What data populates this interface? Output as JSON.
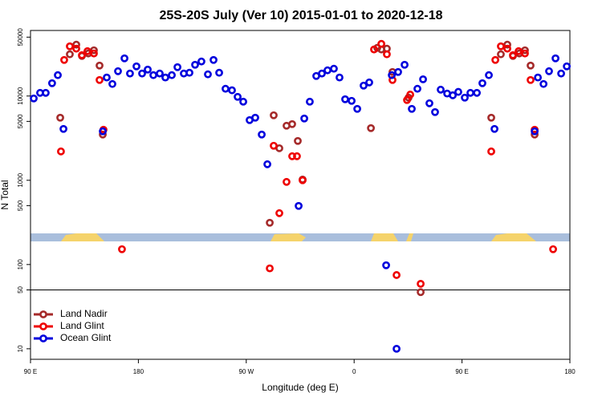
{
  "chart_data": {
    "type": "scatter",
    "title": "25S-20S July (Ver 10)   2015-01-01 to 2020-12-18",
    "xlabel": "Longitude (deg E)",
    "ylabel": "N Total",
    "xlim": [
      90,
      540
    ],
    "ylim": [
      7.5,
      60000
    ],
    "log_y": true,
    "legend": "lower left",
    "hline": 50,
    "xticks": [
      {
        "value": 90,
        "label": "90 E"
      },
      180,
      {
        "value": 270,
        "label": "90 W"
      },
      {
        "value": 360,
        "label": "0"
      },
      {
        "value": 450,
        "label": "90 E"
      },
      {
        "value": 540,
        "label": "180"
      }
    ],
    "yticks": [
      10,
      50,
      100,
      500,
      1000,
      5000,
      10000,
      50000
    ],
    "series": [
      {
        "name": "Land Nadir",
        "color": "#a52a2a",
        "x": [
          114.8,
          122.8,
          128.2,
          132.9,
          138.2,
          142.9,
          147.6,
          150.3,
          289.6,
          292.9,
          297.6,
          303.6,
          308.3,
          313,
          317,
          374,
          379.3,
          382.7,
          387.3,
          392,
          405.4,
          415.5,
          474.4,
          482.4,
          487.8,
          492.5,
          497.8,
          502.5,
          507.2,
          510.6
        ],
        "values": [
          5530,
          31300,
          40700,
          29900,
          32000,
          34900,
          23000,
          3490,
          313,
          5910,
          2400,
          4440,
          4640,
          2930,
          1020,
          4160,
          37300,
          35700,
          36500,
          19300,
          9570,
          47,
          5530,
          31300,
          40700,
          29900,
          32000,
          34900,
          23000,
          3490
        ]
      },
      {
        "name": "Land Glint",
        "color": "#ee0000",
        "x": [
          115.4,
          118.1,
          122.8,
          128.2,
          132.9,
          137.5,
          142.9,
          147.6,
          150.9,
          166.3,
          289.6,
          292.9,
          297.6,
          303.6,
          308.3,
          312.3,
          317,
          376.6,
          382.7,
          387.3,
          392,
          395.4,
          404.1,
          406.8,
          415.5,
          474.4,
          477.8,
          482.4,
          487.8,
          492.5,
          497.2,
          502.5,
          507.2,
          510.6,
          526
        ],
        "values": [
          2200,
          26800,
          38900,
          36500,
          30600,
          34100,
          32000,
          15500,
          3980,
          152,
          90,
          2570,
          407,
          957,
          1930,
          1930,
          1000,
          35700,
          41600,
          31300,
          15500,
          75,
          8960,
          10400,
          59,
          2200,
          26800,
          38900,
          36500,
          30600,
          34100,
          32000,
          15500,
          3980,
          152
        ]
      },
      {
        "name": "Ocean Glint",
        "color": "#0000dd",
        "x": [
          92.7,
          98,
          102.7,
          108,
          112.8,
          117.5,
          150.3,
          153.6,
          158.3,
          163,
          168.4,
          173,
          178.4,
          183.1,
          187.8,
          192.5,
          197.8,
          202.5,
          207.9,
          212.6,
          217.9,
          222.6,
          227.3,
          232.6,
          238,
          242.7,
          247.4,
          252.7,
          258.1,
          262.8,
          267.5,
          272.8,
          277.5,
          282.9,
          287.6,
          313.7,
          318.4,
          323,
          328.4,
          333.1,
          337.8,
          343.1,
          347.8,
          352.5,
          357.9,
          362.6,
          367.9,
          372.6,
          386.7,
          391.4,
          395.4,
          396.7,
          402.1,
          408.1,
          412.8,
          417.5,
          422.8,
          427.5,
          432.2,
          437.6,
          442.3,
          446.9,
          452.3,
          457,
          462.4,
          467,
          472.4,
          477.1,
          510.6,
          513.3,
          518,
          522.6,
          528,
          532.7,
          537.4
        ],
        "values": [
          9360,
          10900,
          10900,
          14200,
          17700,
          4070,
          3810,
          16600,
          13900,
          19700,
          28000,
          18500,
          22500,
          18500,
          20600,
          17700,
          18500,
          16600,
          17700,
          22000,
          18500,
          18900,
          23500,
          25700,
          18100,
          26800,
          18900,
          12200,
          11700,
          9780,
          8570,
          5180,
          5530,
          3490,
          1550,
          496,
          5410,
          8570,
          17300,
          18500,
          20200,
          21100,
          16600,
          9160,
          8770,
          7040,
          13300,
          14500,
          98,
          17700,
          10,
          19300,
          23500,
          7040,
          12200,
          15800,
          8200,
          6450,
          11900,
          10700,
          10200,
          11200,
          9570,
          10900,
          10900,
          14200,
          17700,
          4070,
          3810,
          16600,
          13900,
          19700,
          28000,
          18500,
          22500
        ]
      }
    ]
  }
}
